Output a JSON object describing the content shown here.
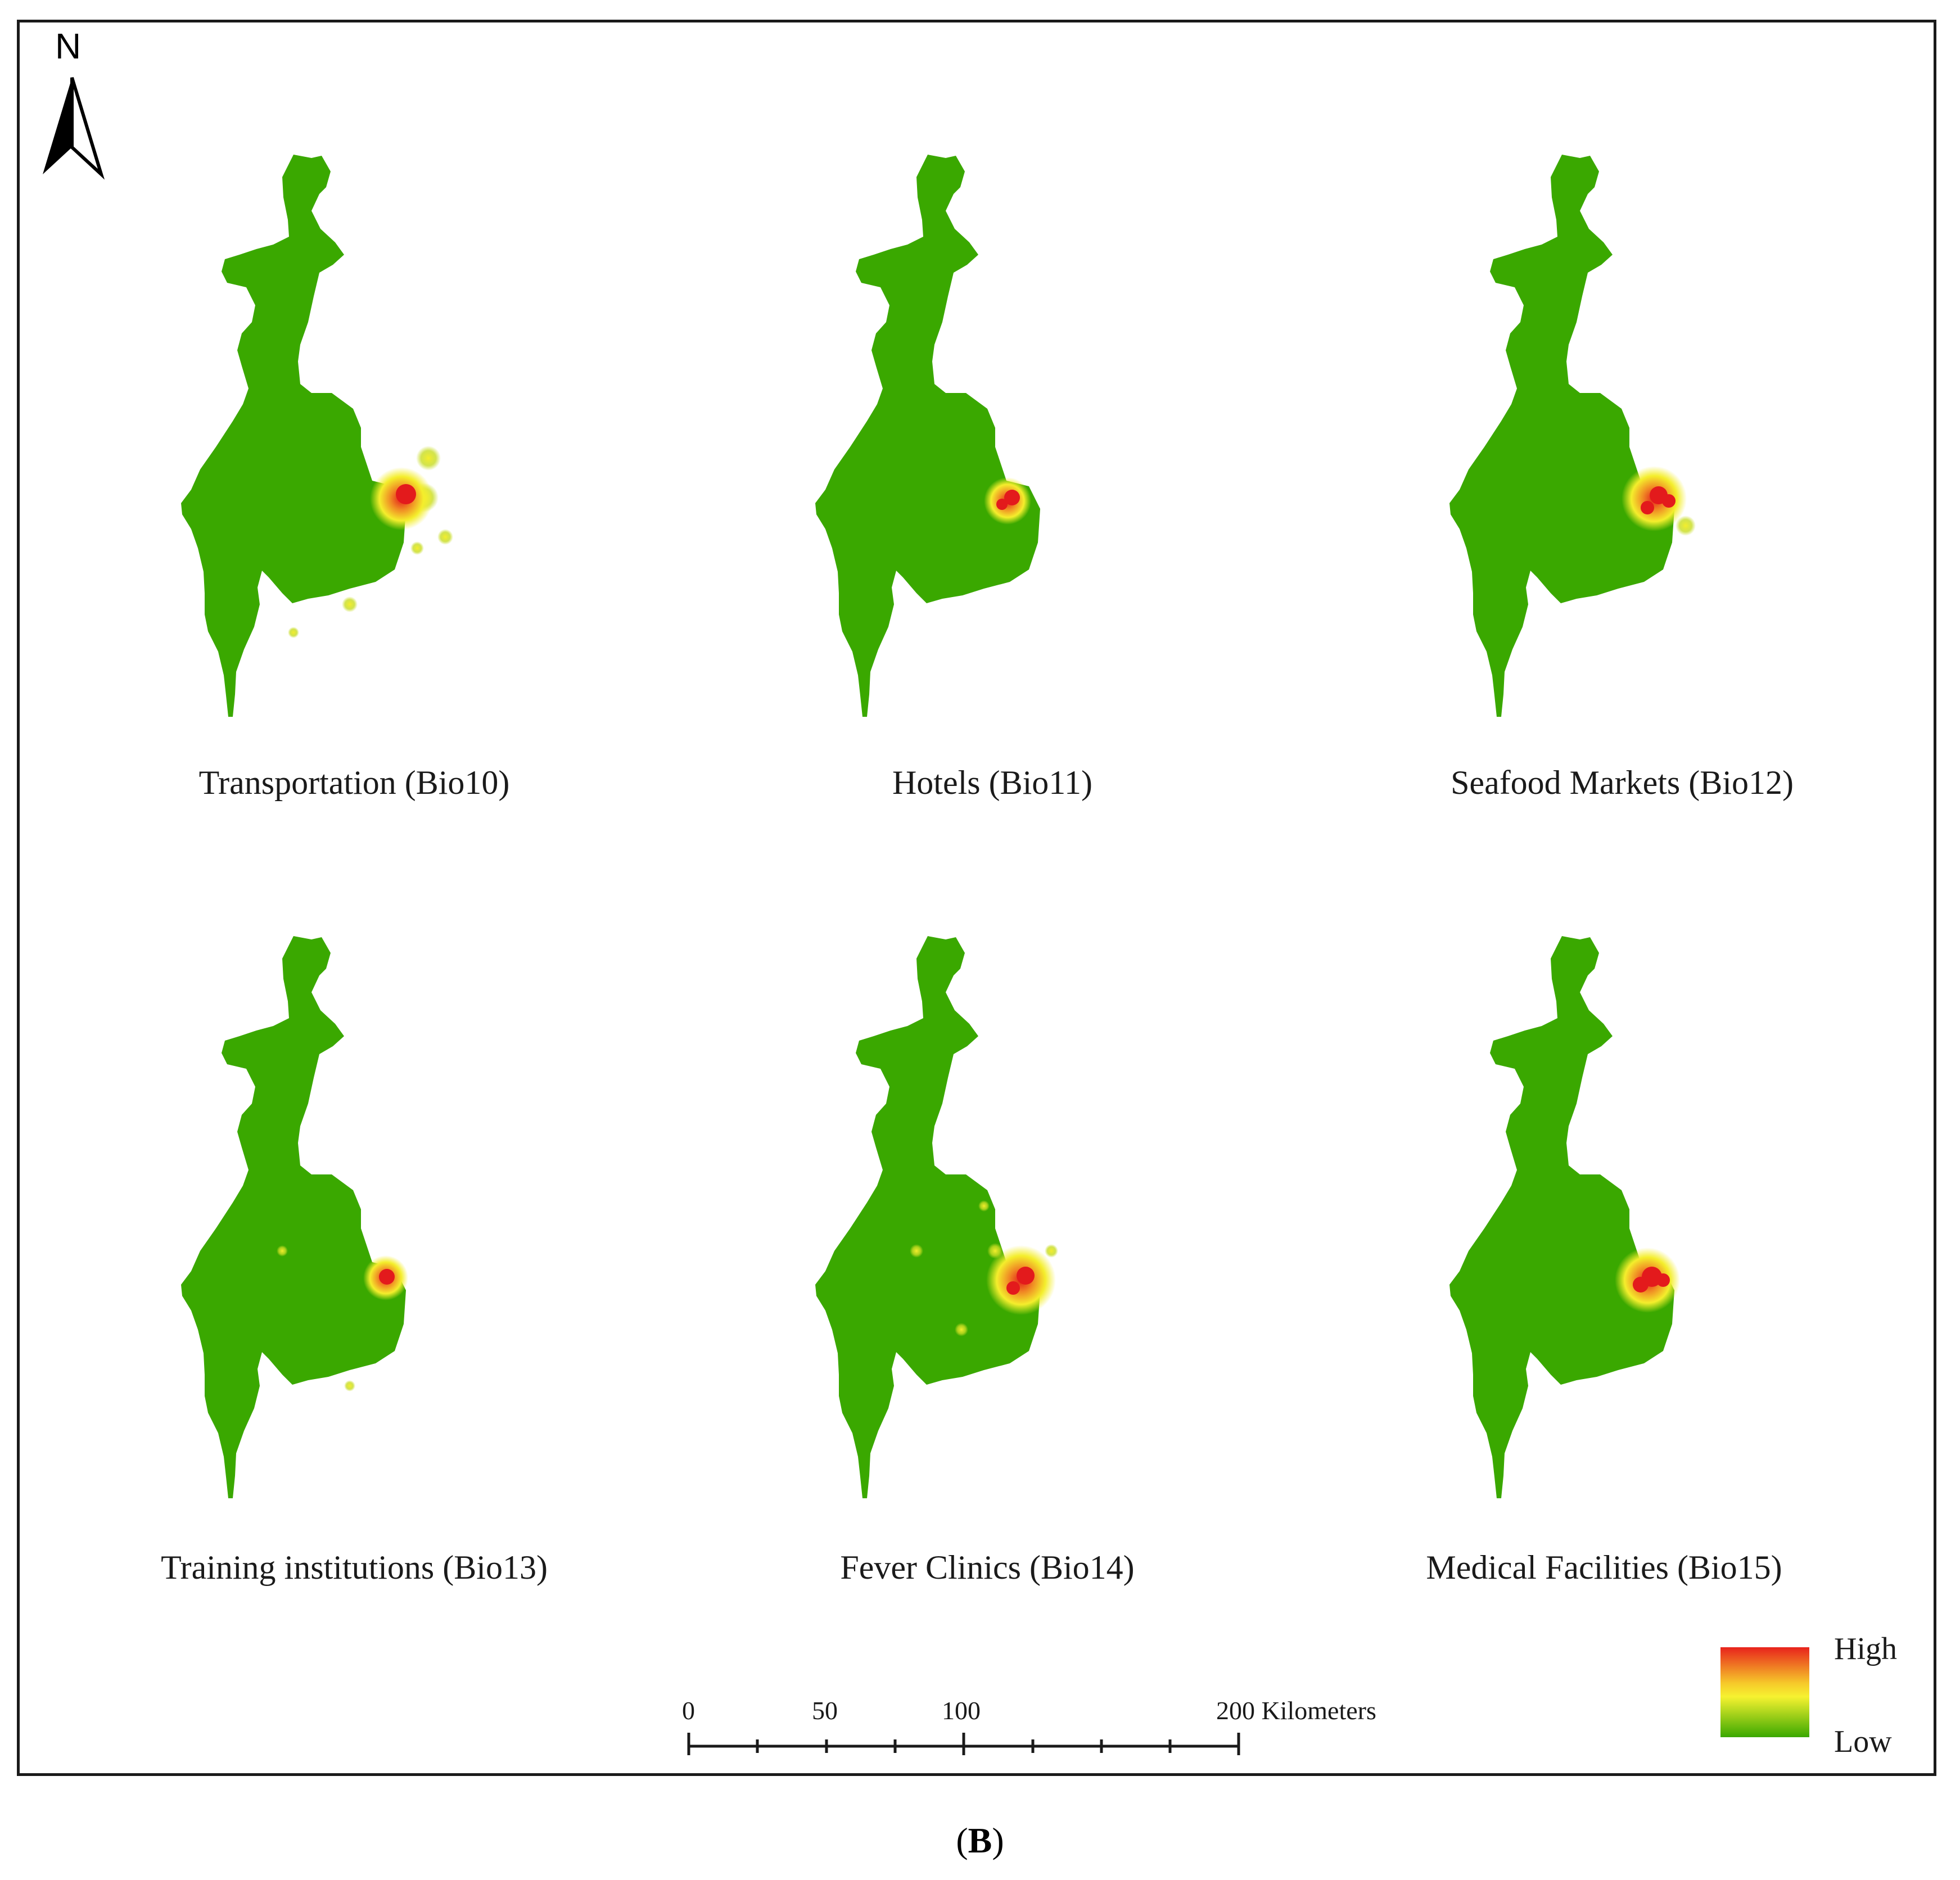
{
  "north_arrow": {
    "letter": "N"
  },
  "panels": [
    {
      "title": "Transportation (Bio10)",
      "hotspot_level": "high",
      "extra_spots": "scattered-north-corridor"
    },
    {
      "title": "Hotels (Bio11)",
      "hotspot_level": "high",
      "extra_spots": "none"
    },
    {
      "title": "Seafood Markets (Bio12)",
      "hotspot_level": "high",
      "extra_spots": "none"
    },
    {
      "title": "Training institutions (Bio13)",
      "hotspot_level": "high",
      "extra_spots": "few"
    },
    {
      "title": "Fever Clinics (Bio14)",
      "hotspot_level": "high",
      "extra_spots": "scattered"
    },
    {
      "title": "Medical Facilities (Bio15)",
      "hotspot_level": "high",
      "extra_spots": "few"
    }
  ],
  "scale_bar": {
    "ticks": [
      "0",
      "50",
      "100",
      "200 Kilometers"
    ],
    "unit": "Kilometers"
  },
  "legend": {
    "high_label": "High",
    "low_label": "Low",
    "colors": {
      "high": "#e8231c",
      "mid": "#f6f230",
      "low": "#3aa800"
    }
  },
  "caption": {
    "open": "(",
    "letter": "B",
    "close": ")"
  },
  "colors": {
    "region_fill": "#3aa800",
    "hotspot_red": "#e31a1c",
    "hotspot_orange": "#f08a24",
    "hotspot_yellow": "#f4ee2c",
    "frame": "#1a1a1a"
  }
}
